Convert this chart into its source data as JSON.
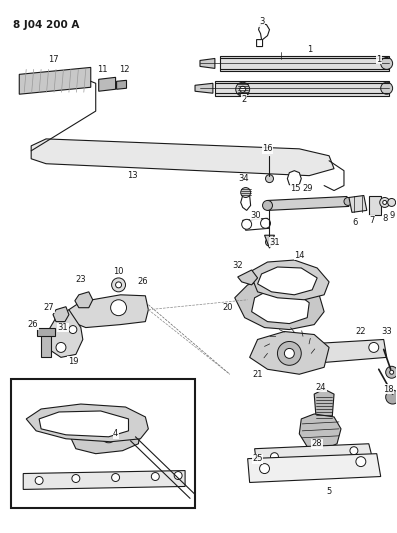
{
  "title": "8 J04 200 A",
  "bg_color": "#ffffff",
  "line_color": "#1a1a1a",
  "fig_width": 3.97,
  "fig_height": 5.33,
  "dpi": 100
}
